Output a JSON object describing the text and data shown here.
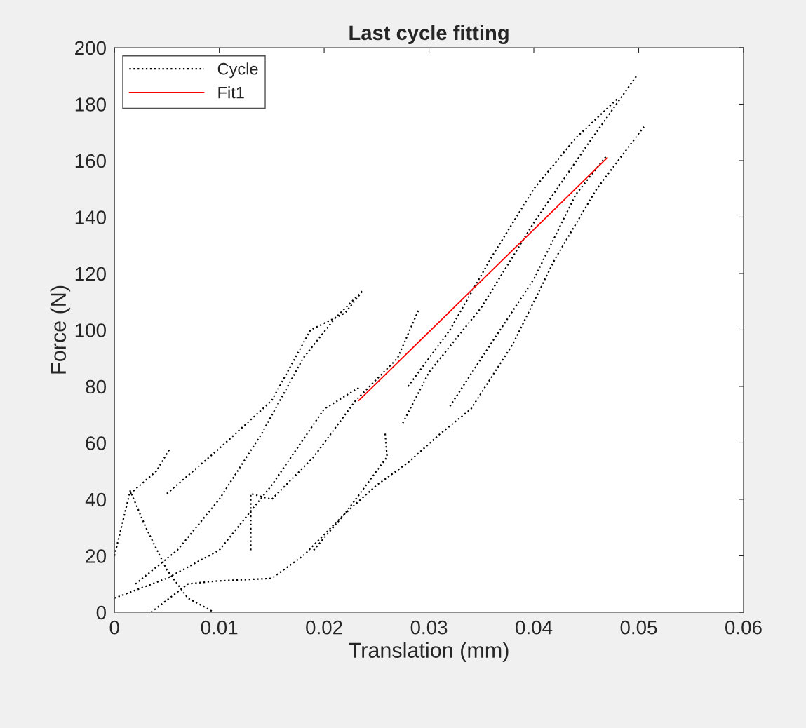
{
  "chart_data": {
    "type": "line",
    "title": "Last cycle fitting",
    "xlabel": "Translation (mm)",
    "ylabel": "Force (N)",
    "xlim": [
      0,
      0.06
    ],
    "ylim": [
      0,
      200
    ],
    "xticks": [
      0,
      0.01,
      0.02,
      0.03,
      0.04,
      0.05,
      0.06
    ],
    "yticks": [
      0,
      20,
      40,
      60,
      80,
      100,
      120,
      140,
      160,
      180,
      200
    ],
    "grid": false,
    "legend": "top left",
    "series": [
      {
        "name": "Cycle",
        "color": "#000000",
        "line_style": "dotted",
        "x": [
          0,
          0.0015,
          0.003,
          0.005,
          0.007,
          0.0095,
          null,
          0.0015,
          0.004,
          0.0053,
          null,
          0,
          0.005,
          0.01,
          0.015,
          0.02,
          0.0235,
          null,
          0.002,
          0.006,
          0.01,
          0.014,
          0.018,
          0.021,
          0.0237,
          null,
          0.005,
          0.01,
          0.015,
          0.0187,
          0.022,
          0.0237,
          null,
          0.0035,
          0.007,
          0.0095,
          0.015,
          0.018,
          0.022,
          0.025,
          0.028,
          0.031,
          0.034,
          0.038,
          0.042,
          0.046,
          0.0505,
          null,
          0.019,
          0.022,
          0.026,
          0.0258,
          null,
          0.0275,
          0.03,
          0.035,
          0.04,
          0.045,
          0.0498,
          null,
          0.013,
          0.013,
          0.015,
          0.019,
          0.023,
          0.027,
          0.029,
          null,
          0.032,
          0.035,
          0.04,
          0.044,
          0.047,
          null,
          0.028,
          0.032,
          0.036,
          0.04,
          0.044,
          0.048
        ],
        "values": [
          20,
          43,
          30,
          15,
          5,
          0,
          null,
          42,
          50,
          58,
          null,
          5,
          12,
          22,
          45,
          72,
          80,
          null,
          10,
          22,
          40,
          63,
          90,
          104,
          114,
          null,
          42,
          58,
          75,
          100,
          106,
          114,
          null,
          0,
          10,
          11,
          12,
          20,
          35,
          45,
          53,
          63,
          72,
          95,
          125,
          150,
          172,
          null,
          22,
          35,
          55,
          64,
          null,
          67,
          85,
          108,
          138,
          165,
          190,
          null,
          22,
          42,
          40,
          55,
          75,
          90,
          107,
          null,
          73,
          90,
          118,
          148,
          162,
          null,
          80,
          100,
          126,
          150,
          168,
          182
        ]
      },
      {
        "name": "Fit1",
        "color": "#ff0000",
        "line_style": "solid",
        "x": [
          0.0233,
          0.047
        ],
        "values": [
          75,
          161
        ]
      }
    ]
  }
}
